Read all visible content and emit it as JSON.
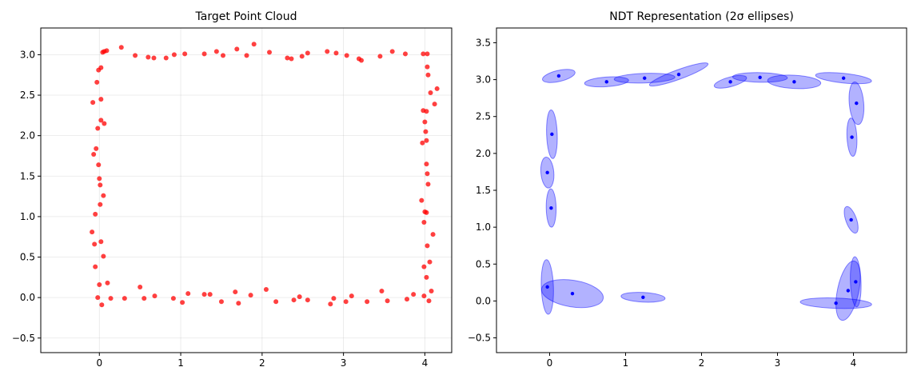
{
  "chart_data": [
    {
      "type": "scatter",
      "title": "Target Point Cloud",
      "xlabel": "",
      "ylabel": "",
      "xlim": [
        -0.72,
        4.33
      ],
      "ylim": [
        -0.68,
        3.33
      ],
      "xticks": [
        0,
        1,
        2,
        3,
        4
      ],
      "xtick_labels": [
        "0",
        "1",
        "2",
        "3",
        "4"
      ],
      "yticks": [
        -0.5,
        0.0,
        0.5,
        1.0,
        1.5,
        2.0,
        2.5,
        3.0
      ],
      "ytick_labels": [
        "−0.5",
        "0.0",
        "0.5",
        "1.0",
        "1.5",
        "2.0",
        "2.5",
        "3.0"
      ],
      "grid": true,
      "color": "#ff0000",
      "points": [
        [
          0.04,
          3.03
        ],
        [
          0.09,
          3.05
        ],
        [
          0.06,
          3.04
        ],
        [
          0.27,
          3.09
        ],
        [
          0.44,
          2.99
        ],
        [
          0.6,
          2.97
        ],
        [
          0.67,
          2.96
        ],
        [
          0.82,
          2.96
        ],
        [
          0.92,
          3.0
        ],
        [
          1.05,
          3.01
        ],
        [
          1.29,
          3.01
        ],
        [
          1.44,
          3.04
        ],
        [
          1.52,
          2.99
        ],
        [
          1.69,
          3.07
        ],
        [
          1.81,
          2.99
        ],
        [
          1.9,
          3.13
        ],
        [
          2.09,
          3.03
        ],
        [
          2.31,
          2.96
        ],
        [
          2.36,
          2.95
        ],
        [
          2.49,
          2.98
        ],
        [
          2.56,
          3.02
        ],
        [
          2.8,
          3.04
        ],
        [
          2.91,
          3.02
        ],
        [
          3.04,
          2.99
        ],
        [
          3.19,
          2.95
        ],
        [
          3.22,
          2.93
        ],
        [
          3.45,
          2.98
        ],
        [
          3.6,
          3.04
        ],
        [
          3.76,
          3.01
        ],
        [
          3.98,
          3.01
        ],
        [
          4.03,
          3.01
        ],
        [
          -0.01,
          2.81
        ],
        [
          0.02,
          2.84
        ],
        [
          -0.03,
          2.66
        ],
        [
          -0.08,
          2.41
        ],
        [
          0.02,
          2.45
        ],
        [
          0.02,
          2.19
        ],
        [
          0.06,
          2.15
        ],
        [
          -0.02,
          2.09
        ],
        [
          -0.04,
          1.84
        ],
        [
          -0.07,
          1.77
        ],
        [
          -0.01,
          1.64
        ],
        [
          0.0,
          1.47
        ],
        [
          0.01,
          1.39
        ],
        [
          0.05,
          1.26
        ],
        [
          0.01,
          1.15
        ],
        [
          -0.05,
          1.03
        ],
        [
          -0.09,
          0.81
        ],
        [
          0.02,
          0.69
        ],
        [
          -0.06,
          0.66
        ],
        [
          0.05,
          0.51
        ],
        [
          -0.05,
          0.38
        ],
        [
          0.0,
          0.16
        ],
        [
          0.1,
          0.18
        ],
        [
          -0.02,
          0.0
        ],
        [
          0.03,
          -0.09
        ],
        [
          0.14,
          -0.01
        ],
        [
          0.31,
          -0.01
        ],
        [
          0.5,
          0.13
        ],
        [
          0.55,
          -0.01
        ],
        [
          0.68,
          0.02
        ],
        [
          0.91,
          -0.01
        ],
        [
          1.02,
          -0.06
        ],
        [
          1.09,
          0.05
        ],
        [
          1.29,
          0.04
        ],
        [
          1.36,
          0.04
        ],
        [
          1.5,
          -0.05
        ],
        [
          1.67,
          0.07
        ],
        [
          1.71,
          -0.07
        ],
        [
          1.86,
          0.03
        ],
        [
          2.05,
          0.1
        ],
        [
          2.17,
          -0.05
        ],
        [
          2.39,
          -0.03
        ],
        [
          2.46,
          0.01
        ],
        [
          2.56,
          -0.03
        ],
        [
          2.84,
          -0.08
        ],
        [
          2.88,
          -0.01
        ],
        [
          3.03,
          -0.05
        ],
        [
          3.1,
          0.02
        ],
        [
          3.29,
          -0.05
        ],
        [
          3.47,
          0.08
        ],
        [
          3.54,
          -0.04
        ],
        [
          3.78,
          -0.02
        ],
        [
          3.86,
          0.04
        ],
        [
          3.99,
          0.02
        ],
        [
          4.05,
          -0.04
        ],
        [
          4.08,
          0.08
        ],
        [
          4.02,
          0.25
        ],
        [
          3.99,
          0.38
        ],
        [
          4.06,
          0.44
        ],
        [
          4.03,
          0.64
        ],
        [
          4.1,
          0.78
        ],
        [
          3.99,
          0.93
        ],
        [
          4.02,
          1.05
        ],
        [
          4.0,
          1.06
        ],
        [
          3.96,
          1.2
        ],
        [
          4.04,
          1.4
        ],
        [
          4.03,
          1.53
        ],
        [
          4.02,
          1.65
        ],
        [
          4.02,
          1.94
        ],
        [
          3.97,
          1.91
        ],
        [
          4.01,
          2.05
        ],
        [
          4.0,
          2.17
        ],
        [
          4.02,
          2.3
        ],
        [
          3.98,
          2.31
        ],
        [
          4.07,
          2.53
        ],
        [
          4.15,
          2.58
        ],
        [
          4.04,
          2.75
        ],
        [
          4.03,
          2.85
        ],
        [
          4.12,
          2.39
        ]
      ]
    },
    {
      "type": "scatter",
      "title": "NDT Representation (2σ ellipses)",
      "xlabel": "",
      "ylabel": "",
      "xlim": [
        -0.7,
        4.7
      ],
      "ylim": [
        -0.7,
        3.7
      ],
      "xticks": [
        0,
        1,
        2,
        3,
        4
      ],
      "xtick_labels": [
        "0",
        "1",
        "2",
        "3",
        "4"
      ],
      "yticks": [
        -0.5,
        0.0,
        0.5,
        1.0,
        1.5,
        2.0,
        2.5,
        3.0,
        3.5
      ],
      "ytick_labels": [
        "−0.5",
        "0.0",
        "0.5",
        "1.0",
        "1.5",
        "2.0",
        "2.5",
        "3.0",
        "3.5"
      ],
      "grid": false,
      "color": "#0000ff",
      "fill_color": "#0000ff",
      "ellipses": [
        {
          "cx": 0.12,
          "cy": 3.05,
          "rx": 0.22,
          "ry": 0.075,
          "angle": 13
        },
        {
          "cx": 0.75,
          "cy": 2.97,
          "rx": 0.29,
          "ry": 0.065,
          "angle": 4
        },
        {
          "cx": 1.25,
          "cy": 3.02,
          "rx": 0.4,
          "ry": 0.065,
          "angle": 2
        },
        {
          "cx": 1.7,
          "cy": 3.07,
          "rx": 0.41,
          "ry": 0.065,
          "angle": 20
        },
        {
          "cx": 2.38,
          "cy": 2.97,
          "rx": 0.22,
          "ry": 0.065,
          "angle": 15
        },
        {
          "cx": 2.77,
          "cy": 3.03,
          "rx": 0.36,
          "ry": 0.065,
          "angle": -1
        },
        {
          "cx": 3.22,
          "cy": 2.97,
          "rx": 0.35,
          "ry": 0.09,
          "angle": -3
        },
        {
          "cx": 3.87,
          "cy": 3.02,
          "rx": 0.37,
          "ry": 0.065,
          "angle": -6
        },
        {
          "cx": 4.04,
          "cy": 2.68,
          "rx": 0.095,
          "ry": 0.29,
          "angle": 5
        },
        {
          "cx": 3.98,
          "cy": 2.22,
          "rx": 0.065,
          "ry": 0.26,
          "angle": 3
        },
        {
          "cx": 0.03,
          "cy": 2.26,
          "rx": 0.07,
          "ry": 0.33,
          "angle": 2
        },
        {
          "cx": -0.03,
          "cy": 1.74,
          "rx": 0.085,
          "ry": 0.21,
          "angle": 5
        },
        {
          "cx": 0.02,
          "cy": 1.26,
          "rx": 0.065,
          "ry": 0.26,
          "angle": 1
        },
        {
          "cx": 3.97,
          "cy": 1.1,
          "rx": 0.07,
          "ry": 0.19,
          "angle": 20
        },
        {
          "cx": -0.03,
          "cy": 0.19,
          "rx": 0.08,
          "ry": 0.37,
          "angle": 2
        },
        {
          "cx": 0.3,
          "cy": 0.1,
          "rx": 0.41,
          "ry": 0.18,
          "angle": -9
        },
        {
          "cx": 1.23,
          "cy": 0.05,
          "rx": 0.29,
          "ry": 0.065,
          "angle": -3
        },
        {
          "cx": 3.77,
          "cy": -0.03,
          "rx": 0.47,
          "ry": 0.07,
          "angle": -2
        },
        {
          "cx": 3.93,
          "cy": 0.14,
          "rx": 0.14,
          "ry": 0.41,
          "angle": -12
        },
        {
          "cx": 4.03,
          "cy": 0.26,
          "rx": 0.07,
          "ry": 0.34,
          "angle": 2
        }
      ]
    }
  ]
}
